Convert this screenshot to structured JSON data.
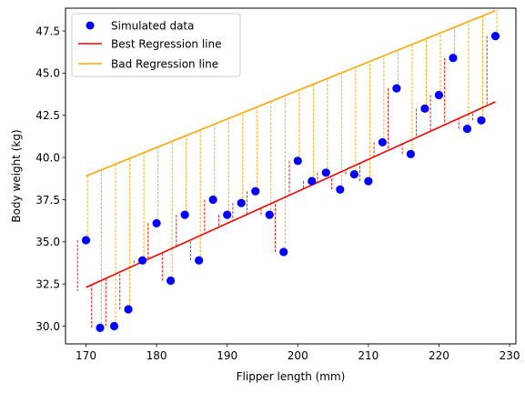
{
  "chart_data": {
    "type": "scatter",
    "xlabel": "Flipper length (mm)",
    "ylabel": "Body weight (kg)",
    "xlim": [
      167.1,
      230.9
    ],
    "ylim": [
      28.95,
      48.85
    ],
    "x_ticks": [
      170,
      180,
      190,
      200,
      210,
      220,
      230
    ],
    "y_ticks": [
      30.0,
      32.5,
      35.0,
      37.5,
      40.0,
      42.5,
      45.0,
      47.5
    ],
    "x_tick_labels": [
      "170",
      "180",
      "190",
      "200",
      "210",
      "220",
      "230"
    ],
    "y_tick_labels": [
      "30.0",
      "32.5",
      "35.0",
      "37.5",
      "40.0",
      "42.5",
      "45.0",
      "47.5"
    ],
    "grid": false,
    "legend_position": "top-left",
    "series": [
      {
        "name": "Simulated data",
        "kind": "scatter",
        "color": "#0000ff",
        "x": [
          170,
          172,
          174,
          176,
          178,
          180,
          182,
          184,
          186,
          188,
          190,
          192,
          194,
          196,
          198,
          200,
          202,
          204,
          206,
          208,
          210,
          212,
          214,
          216,
          218,
          220,
          222,
          224,
          226,
          228
        ],
        "y": [
          35.1,
          29.9,
          30.0,
          31.0,
          33.9,
          36.1,
          32.7,
          36.6,
          33.9,
          37.5,
          36.6,
          37.3,
          38.0,
          36.6,
          34.4,
          39.8,
          38.6,
          39.1,
          38.1,
          39.0,
          38.6,
          40.9,
          44.1,
          40.2,
          42.9,
          43.7,
          45.9,
          41.7,
          42.2,
          47.2
        ]
      },
      {
        "name": "Best Regression line",
        "kind": "line",
        "color": "#ff0000",
        "x": [
          170,
          228
        ],
        "y": [
          32.3,
          43.3
        ]
      },
      {
        "name": "Bad Regression line",
        "kind": "line",
        "color": "#ffa500",
        "x": [
          170,
          228
        ],
        "y": [
          38.9,
          48.7
        ]
      }
    ]
  }
}
